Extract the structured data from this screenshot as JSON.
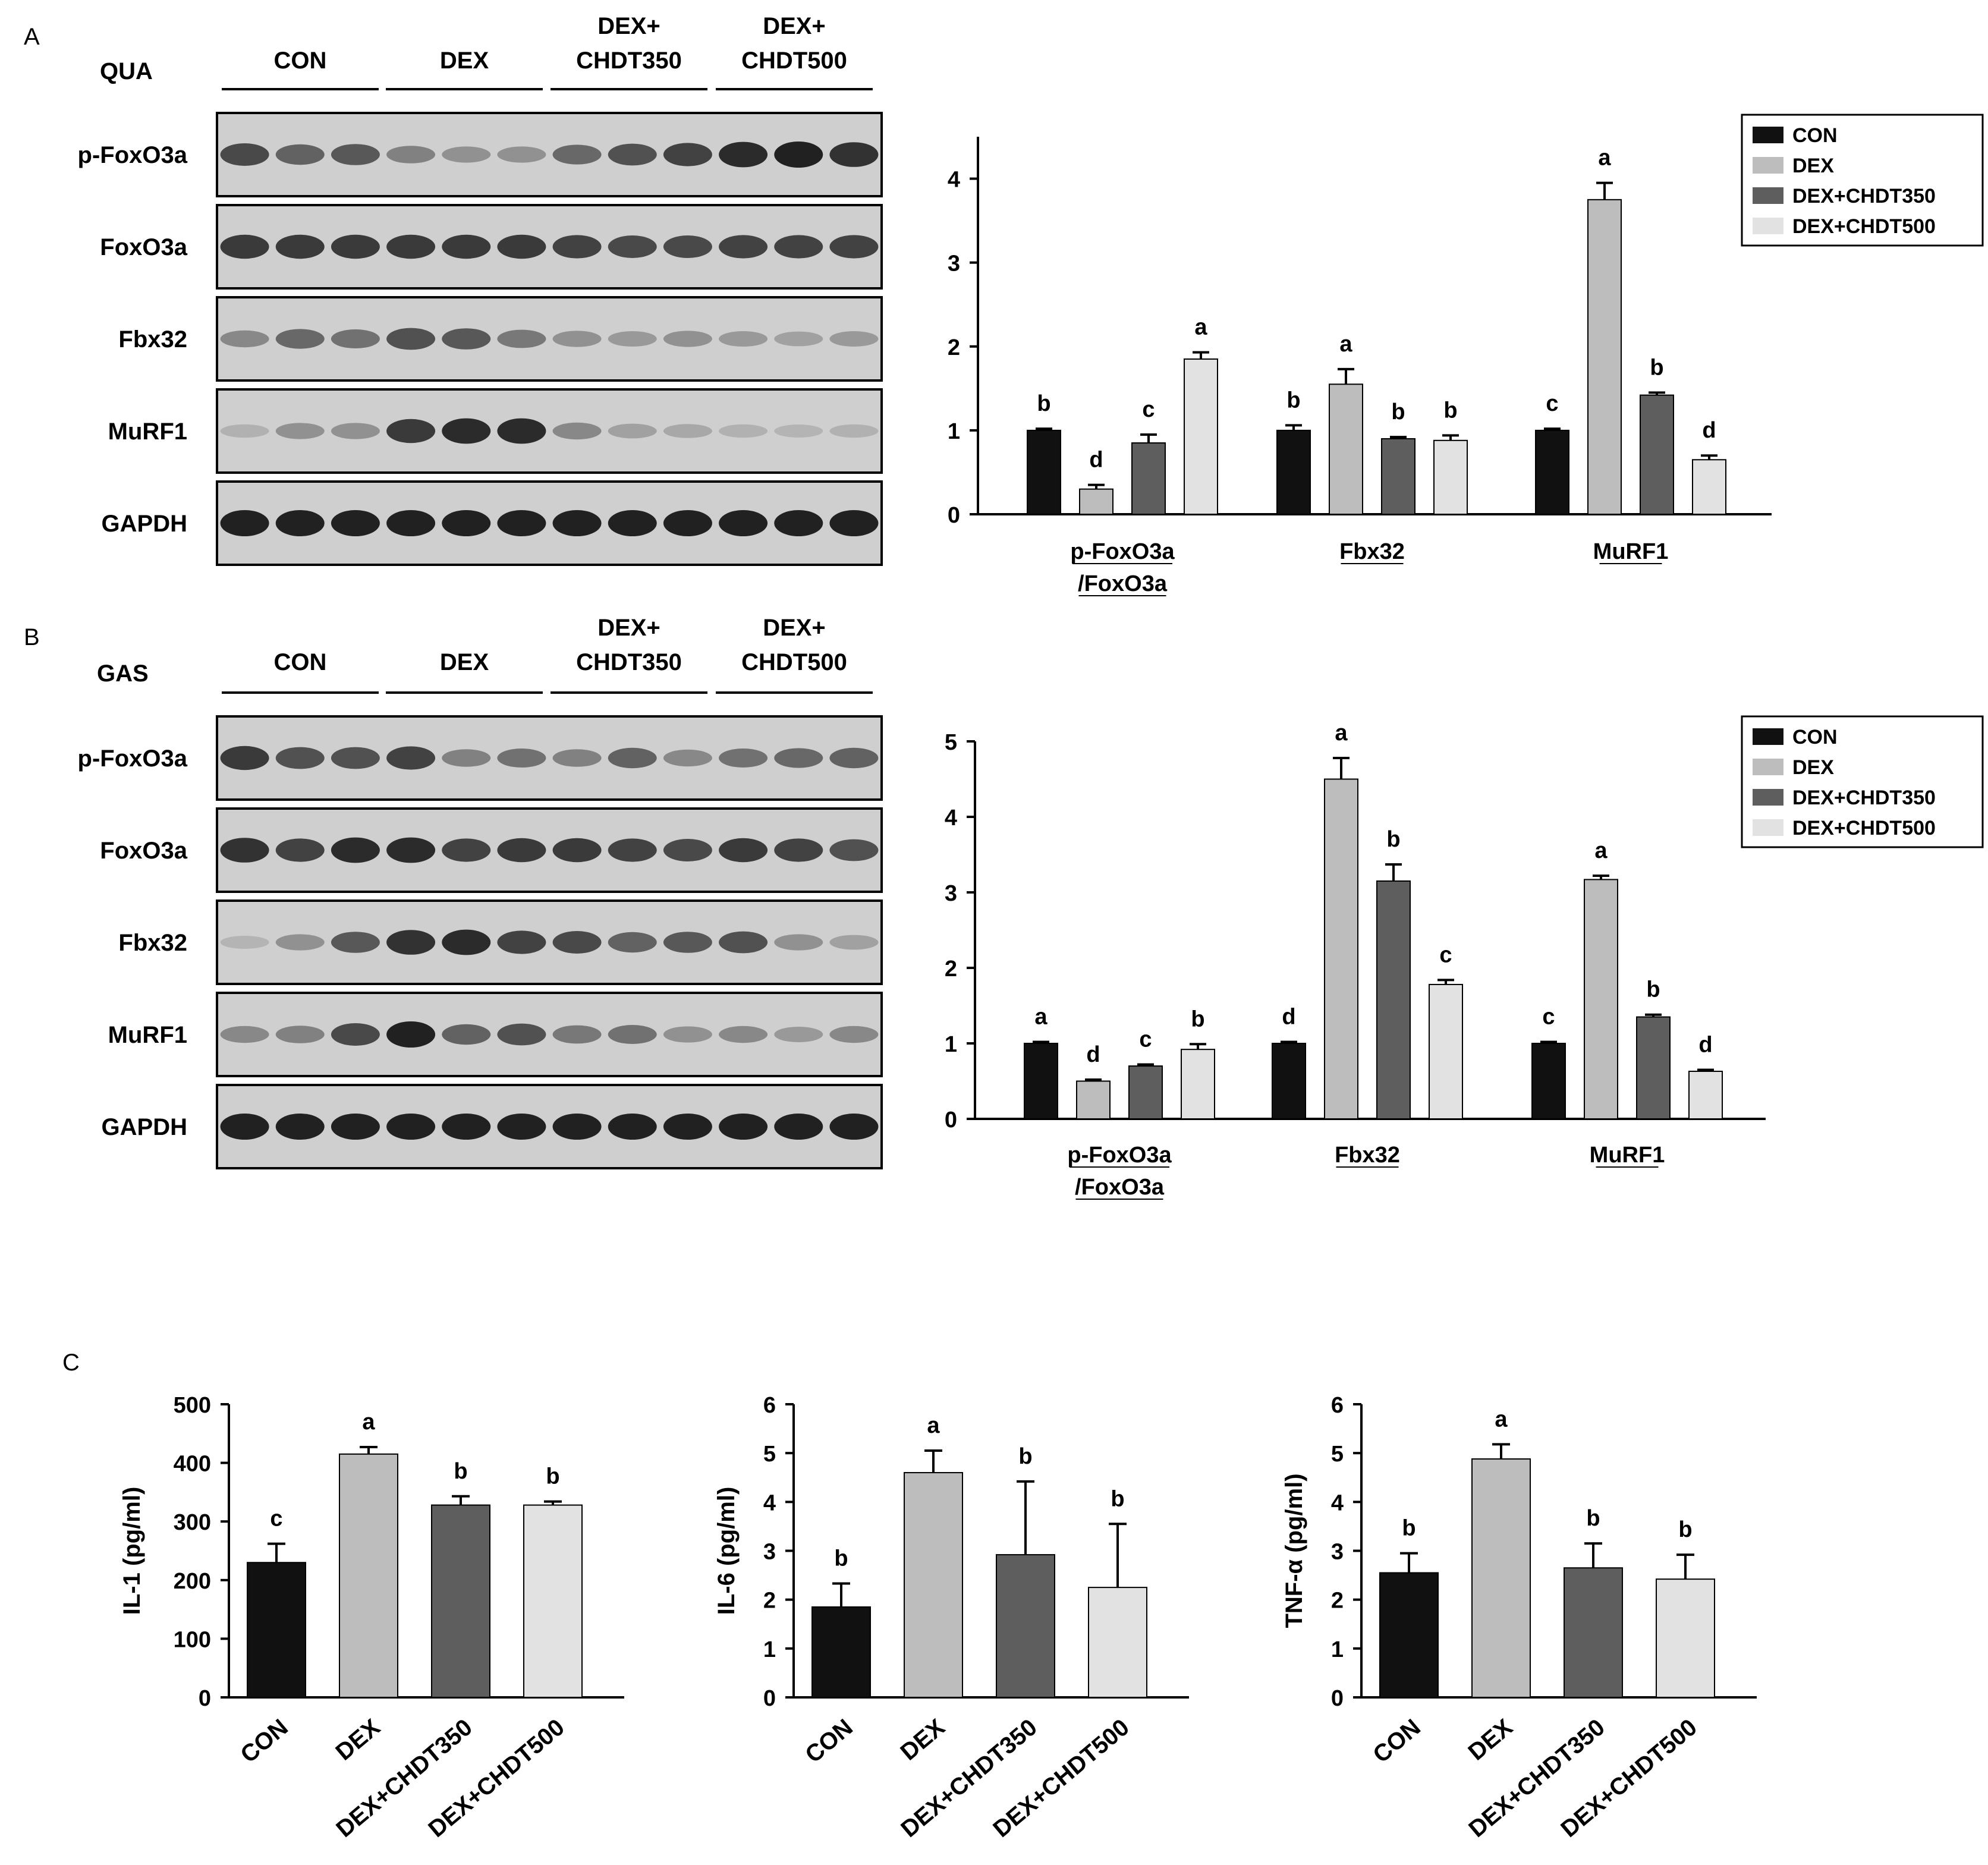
{
  "palette": {
    "CON": "#111111",
    "DEX": "#bdbdbd",
    "DEX+CHDT350": "#5e5e5e",
    "DEX+CHDT500": "#e2e2e2",
    "blot_bg": "#cfcfcf",
    "band": "#1e1e1e"
  },
  "panel_a": {
    "panel_letter": "A",
    "tissue": "QUA",
    "groups": [
      "CON",
      "DEX",
      "DEX+\nCHDT350",
      "DEX+\nCHDT500"
    ],
    "blot_rows": [
      {
        "label": "p-FoxO3a",
        "intensity": [
          0.75,
          0.6,
          0.65,
          0.4,
          0.3,
          0.3,
          0.55,
          0.7,
          0.8,
          0.95,
          1.0,
          0.9
        ]
      },
      {
        "label": "FoxO3a",
        "intensity": [
          0.85,
          0.85,
          0.85,
          0.85,
          0.85,
          0.85,
          0.8,
          0.75,
          0.75,
          0.8,
          0.8,
          0.8
        ]
      },
      {
        "label": "Fbx32",
        "intensity": [
          0.35,
          0.55,
          0.5,
          0.7,
          0.65,
          0.45,
          0.3,
          0.25,
          0.3,
          0.25,
          0.2,
          0.25
        ]
      },
      {
        "label": "MuRF1",
        "intensity": [
          0.1,
          0.3,
          0.3,
          0.85,
          0.95,
          0.95,
          0.35,
          0.2,
          0.15,
          0.1,
          0.08,
          0.1
        ]
      },
      {
        "label": "GAPDH",
        "intensity": [
          1,
          1,
          1,
          1,
          1,
          1,
          1,
          1,
          1,
          1,
          1,
          1
        ]
      }
    ]
  },
  "panel_b": {
    "panel_letter": "B",
    "tissue": "GAS",
    "groups": [
      "CON",
      "DEX",
      "DEX+\nCHDT350",
      "DEX+\nCHDT500"
    ],
    "blot_rows": [
      {
        "label": "p-FoxO3a",
        "intensity": [
          0.85,
          0.7,
          0.7,
          0.8,
          0.4,
          0.5,
          0.4,
          0.6,
          0.35,
          0.5,
          0.55,
          0.6
        ]
      },
      {
        "label": "FoxO3a",
        "intensity": [
          0.9,
          0.8,
          0.95,
          0.95,
          0.8,
          0.85,
          0.85,
          0.8,
          0.75,
          0.85,
          0.8,
          0.7
        ]
      },
      {
        "label": "Fbx32",
        "intensity": [
          0.08,
          0.3,
          0.65,
          0.9,
          0.95,
          0.8,
          0.75,
          0.6,
          0.65,
          0.7,
          0.3,
          0.2
        ]
      },
      {
        "label": "MuRF1",
        "intensity": [
          0.35,
          0.4,
          0.75,
          1.0,
          0.6,
          0.7,
          0.45,
          0.5,
          0.3,
          0.35,
          0.25,
          0.35
        ]
      },
      {
        "label": "GAPDH",
        "intensity": [
          1,
          1,
          1,
          1,
          1,
          1,
          1,
          1,
          1,
          1,
          1,
          1
        ]
      }
    ]
  },
  "chart_data": [
    {
      "type": "bar",
      "panel": "A",
      "categories": [
        "p-FoxO3a\n/FoxO3a",
        "Fbx32",
        "MuRF1"
      ],
      "series": [
        {
          "name": "CON",
          "values": [
            1.0,
            1.0,
            1.0
          ],
          "errors": [
            0.02,
            0.06,
            0.02
          ],
          "letters": [
            "b",
            "b",
            "c"
          ]
        },
        {
          "name": "DEX",
          "values": [
            0.3,
            1.55,
            3.75
          ],
          "errors": [
            0.05,
            0.18,
            0.2
          ],
          "letters": [
            "d",
            "a",
            "a"
          ]
        },
        {
          "name": "DEX+CHDT350",
          "values": [
            0.85,
            0.9,
            1.42
          ],
          "errors": [
            0.1,
            0.02,
            0.03
          ],
          "letters": [
            "c",
            "b",
            "b"
          ]
        },
        {
          "name": "DEX+CHDT500",
          "values": [
            1.85,
            0.88,
            0.65
          ],
          "errors": [
            0.08,
            0.06,
            0.05
          ],
          "letters": [
            "a",
            "b",
            "d"
          ]
        }
      ],
      "yticks": [
        0,
        1,
        2,
        3,
        4
      ],
      "ylim": [
        0,
        4.5
      ],
      "legend": "top-right"
    },
    {
      "type": "bar",
      "panel": "B",
      "categories": [
        "p-FoxO3a\n/FoxO3a",
        "Fbx32",
        "MuRF1"
      ],
      "series": [
        {
          "name": "CON",
          "values": [
            1.0,
            1.0,
            1.0
          ],
          "errors": [
            0.02,
            0.02,
            0.02
          ],
          "letters": [
            "a",
            "d",
            "c"
          ]
        },
        {
          "name": "DEX",
          "values": [
            0.5,
            4.5,
            3.17
          ],
          "errors": [
            0.02,
            0.28,
            0.05
          ],
          "letters": [
            "d",
            "a",
            "a"
          ]
        },
        {
          "name": "DEX+CHDT350",
          "values": [
            0.7,
            3.15,
            1.35
          ],
          "errors": [
            0.02,
            0.22,
            0.03
          ],
          "letters": [
            "c",
            "b",
            "b"
          ]
        },
        {
          "name": "DEX+CHDT500",
          "values": [
            0.92,
            1.78,
            0.63
          ],
          "errors": [
            0.07,
            0.06,
            0.02
          ],
          "letters": [
            "b",
            "c",
            "d"
          ]
        }
      ],
      "yticks": [
        0,
        1,
        2,
        3,
        4,
        5
      ],
      "ylim": [
        0,
        5
      ],
      "legend": "top-right"
    },
    {
      "type": "bar",
      "panel": "C",
      "categories": [
        "CON",
        "DEX",
        "DEX+CHDT350",
        "DEX+CHDT500"
      ],
      "values": [
        230,
        415,
        328,
        328
      ],
      "errors": [
        32,
        12,
        15,
        6
      ],
      "letters": [
        "c",
        "a",
        "b",
        "b"
      ],
      "ylabel": "IL-1 (pg/ml)",
      "yticks": [
        0,
        100,
        200,
        300,
        400,
        500
      ],
      "ylim": [
        0,
        500
      ]
    },
    {
      "type": "bar",
      "panel": "C",
      "categories": [
        "CON",
        "DEX",
        "DEX+CHDT350",
        "DEX+CHDT500"
      ],
      "values": [
        1.85,
        4.6,
        2.92,
        2.25
      ],
      "errors": [
        0.48,
        0.45,
        1.5,
        1.3
      ],
      "letters": [
        "b",
        "a",
        "b",
        "b"
      ],
      "ylabel": "IL-6 (pg/ml)",
      "yticks": [
        0,
        1,
        2,
        3,
        4,
        5,
        6
      ],
      "ylim": [
        0,
        6
      ]
    },
    {
      "type": "bar",
      "panel": "C",
      "categories": [
        "CON",
        "DEX",
        "DEX+CHDT350",
        "DEX+CHDT500"
      ],
      "values": [
        2.55,
        4.88,
        2.65,
        2.42
      ],
      "errors": [
        0.4,
        0.3,
        0.5,
        0.5
      ],
      "letters": [
        "b",
        "a",
        "b",
        "b"
      ],
      "ylabel": "TNF-α (pg/ml)",
      "yticks": [
        0,
        1,
        2,
        3,
        4,
        5,
        6
      ],
      "ylim": [
        0,
        6
      ]
    }
  ],
  "panel_c": {
    "panel_letter": "C"
  }
}
